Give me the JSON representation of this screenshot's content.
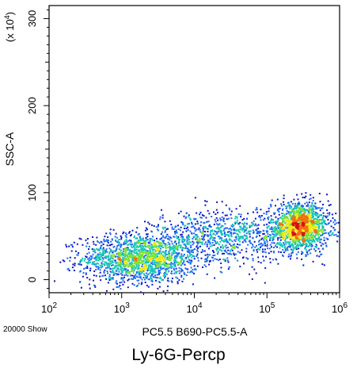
{
  "chart_data": {
    "type": "scatter",
    "subtype": "flow-cytometry-density-dot-plot",
    "xlabel": "PC5.5 B690-PC5.5-A",
    "ylabel": "SSC-A",
    "y_multiplier_label": "(x 10",
    "y_multiplier_exp": "4",
    "y_multiplier_close": ")",
    "x_scale": "log",
    "xlim": [
      100,
      1000000
    ],
    "x_ticks": [
      {
        "value": 100,
        "base": "10",
        "exp": "2"
      },
      {
        "value": 1000,
        "base": "10",
        "exp": "3"
      },
      {
        "value": 10000,
        "base": "10",
        "exp": "4"
      },
      {
        "value": 100000,
        "base": "10",
        "exp": "5"
      },
      {
        "value": 1000000,
        "base": "10",
        "exp": "6"
      }
    ],
    "y_scale": "linear",
    "ylim": [
      -15,
      315
    ],
    "y_ticks": [
      {
        "value": 0,
        "label": "0"
      },
      {
        "value": 100,
        "label": "100"
      },
      {
        "value": 200,
        "label": "200"
      },
      {
        "value": 300,
        "label": "300"
      }
    ],
    "event_count_label": "20000 Show",
    "density_colors": [
      "#0a12c8",
      "#1e6cf0",
      "#18c8b4",
      "#7ee030",
      "#f2e818",
      "#f07010",
      "#d81010"
    ],
    "populations": [
      {
        "x_log_center": 3.25,
        "y_center": 25,
        "x_log_spread": 0.4,
        "y_spread": 14,
        "n": 1700,
        "peak_color": "#7ee030"
      },
      {
        "x_log_center": 5.45,
        "y_center": 62,
        "x_log_spread": 0.2,
        "y_spread": 13,
        "n": 1500,
        "peak_color": "#d81010"
      },
      {
        "x_log_center": 4.45,
        "y_center": 50,
        "x_log_spread": 0.5,
        "y_spread": 15,
        "n": 900,
        "peak_color": "#1e6cf0"
      }
    ],
    "grid": false,
    "legend": "none"
  },
  "caption": "Ly-6G-Percp"
}
